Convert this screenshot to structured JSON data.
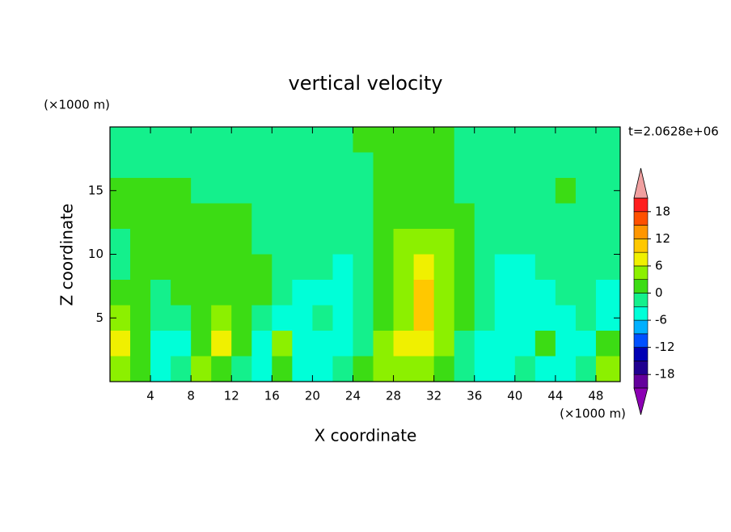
{
  "chart_data": {
    "type": "contour",
    "title": "vertical velocity",
    "x_label": "X coordinate",
    "y_label": "Z coordinate",
    "x_unit": "(×1000 m)",
    "y_unit": "(×1000 m)",
    "time_label": "t=2.0628e+06",
    "xlim": [
      0,
      50.4
    ],
    "ylim": [
      0,
      20
    ],
    "xticks": [
      4,
      8,
      12,
      16,
      20,
      24,
      28,
      32,
      36,
      40,
      44,
      48
    ],
    "yticks": [
      5,
      10,
      15
    ],
    "x": [
      1,
      3,
      5,
      7,
      9,
      11,
      13,
      15,
      17,
      19,
      21,
      23,
      25,
      27,
      29,
      31,
      33,
      35,
      37,
      39,
      41,
      43,
      45,
      47,
      49
    ],
    "y": [
      19,
      17,
      15,
      13,
      11,
      9,
      7,
      5,
      3,
      1
    ],
    "values": [
      [
        -1.5,
        -1.5,
        -1.5,
        -1.5,
        -1.5,
        -1.5,
        -1.5,
        -1.5,
        -1.5,
        -1.5,
        -1.5,
        -1.5,
        1.5,
        1.5,
        1.5,
        1.5,
        1.5,
        -1.5,
        -1.5,
        -1.5,
        -1.5,
        -1.5,
        -1.5,
        -1.5,
        -1.5
      ],
      [
        -1.5,
        -1.5,
        -1.5,
        -1.5,
        -1.5,
        -1.5,
        -1.5,
        -1.5,
        -1.5,
        -1.5,
        -1.5,
        -1.5,
        -1.5,
        1.5,
        1.5,
        1.5,
        1.5,
        -1.5,
        -1.5,
        -1.5,
        -1.5,
        -1.5,
        -1.5,
        -1.5,
        -1.5
      ],
      [
        1.5,
        1.5,
        1.5,
        1.5,
        -1.5,
        -1.5,
        -1.5,
        -1.5,
        -1.5,
        -1.5,
        -1.5,
        -1.5,
        -1.5,
        1.5,
        1.5,
        1.5,
        1.5,
        -1.5,
        -1.5,
        -1.5,
        -1.5,
        -1.5,
        1.5,
        -1.5,
        -1.5
      ],
      [
        1.5,
        1.5,
        1.5,
        1.5,
        1.5,
        1.5,
        1.5,
        -1.5,
        -1.5,
        -1.5,
        -1.5,
        -1.5,
        -1.5,
        1.5,
        1.5,
        1.5,
        1.5,
        1.5,
        -1.5,
        -1.5,
        -1.5,
        -1.5,
        -1.5,
        -1.5,
        -1.5
      ],
      [
        -1.5,
        1.5,
        1.5,
        1.5,
        1.5,
        1.5,
        1.5,
        -1.5,
        -1.5,
        -1.5,
        -1.5,
        -1.5,
        -1.5,
        1.5,
        4.5,
        4.5,
        4.5,
        1.5,
        -1.5,
        -1.5,
        -1.5,
        -1.5,
        -1.5,
        -1.5,
        -1.5
      ],
      [
        -1.5,
        1.5,
        1.5,
        1.5,
        1.5,
        1.5,
        1.5,
        1.5,
        -1.5,
        -1.5,
        -1.5,
        -4.5,
        -1.5,
        1.5,
        4.5,
        7.5,
        4.5,
        1.5,
        -1.5,
        -4.5,
        -4.5,
        -1.5,
        -1.5,
        -1.5,
        -1.5
      ],
      [
        1.5,
        1.5,
        -1.5,
        1.5,
        1.5,
        1.5,
        1.5,
        1.5,
        -1.5,
        -4.5,
        -4.5,
        -4.5,
        -1.5,
        1.5,
        4.5,
        10.5,
        4.5,
        1.5,
        -1.5,
        -4.5,
        -4.5,
        -4.5,
        -1.5,
        -1.5,
        -4.5
      ],
      [
        4.5,
        1.5,
        -1.5,
        -1.5,
        1.5,
        4.5,
        1.5,
        -1.5,
        -4.5,
        -4.5,
        -1.5,
        -4.5,
        -1.5,
        1.5,
        4.5,
        10.5,
        4.5,
        1.5,
        -1.5,
        -4.5,
        -4.5,
        -4.5,
        -4.5,
        -1.5,
        -4.5
      ],
      [
        7.5,
        1.5,
        -4.5,
        -4.5,
        1.5,
        7.5,
        1.5,
        -4.5,
        4.5,
        -4.5,
        -4.5,
        -4.5,
        -1.5,
        4.5,
        7.5,
        7.5,
        4.5,
        -1.5,
        -4.5,
        -4.5,
        -4.5,
        1.5,
        -4.5,
        -4.5,
        1.5
      ],
      [
        4.5,
        1.5,
        -4.5,
        -1.5,
        4.5,
        1.5,
        -1.5,
        -4.5,
        1.5,
        -4.5,
        -4.5,
        -1.5,
        1.5,
        4.5,
        4.5,
        4.5,
        1.5,
        -1.5,
        -4.5,
        -4.5,
        -1.5,
        -4.5,
        -4.5,
        -1.5,
        4.5
      ]
    ],
    "levels": [
      -21,
      -18,
      -15,
      -12,
      -9,
      -6,
      -3,
      0,
      3,
      6,
      9,
      12,
      15,
      18,
      21
    ],
    "colors": [
      "#64009c",
      "#200090",
      "#0000b4",
      "#0050ff",
      "#00b0ff",
      "#00ffd8",
      "#14f08c",
      "#3cdc14",
      "#8cf000",
      "#f0f000",
      "#ffc800",
      "#ff9600",
      "#ff5000",
      "#ff1e1e"
    ],
    "over_color": "#f0a0a0",
    "under_color": "#8c00b4",
    "cbar_ticks": [
      -18,
      -12,
      -6,
      0,
      6,
      12,
      18
    ]
  }
}
